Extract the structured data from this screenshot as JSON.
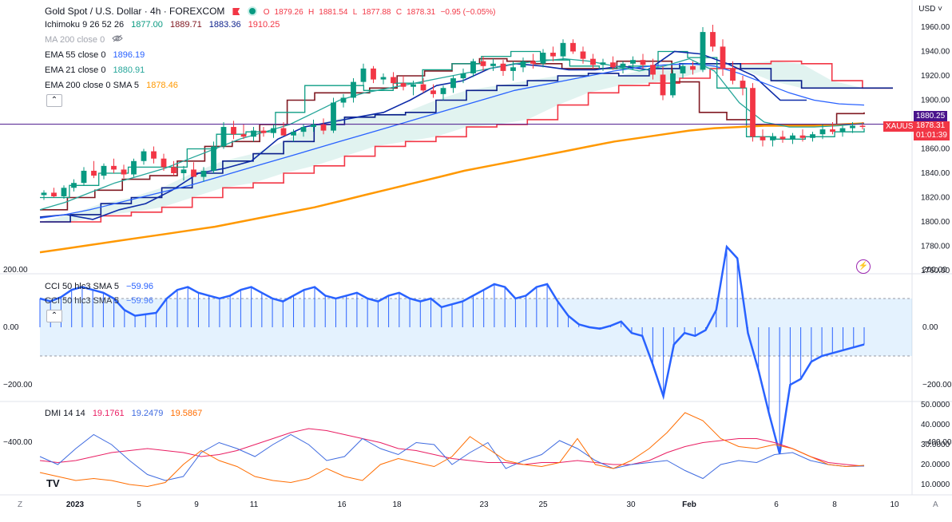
{
  "header": {
    "title": "Gold Spot / U.S. Dollar · 4h · FOREXCOM",
    "ohlc": {
      "O": "1879.26",
      "H": "1881.54",
      "L": "1877.88",
      "C": "1878.31",
      "change": "−0.95 (−0.05%)"
    }
  },
  "legend": {
    "ichimoku": {
      "label": "Ichimoku 9 26 52 26",
      "v1": "1877.00",
      "v2": "1889.71",
      "v3": "1883.36",
      "v4": "1910.25"
    },
    "ma200": {
      "label": "MA 200 close 0"
    },
    "ema55": {
      "label": "EMA 55 close 0",
      "value": "1896.19"
    },
    "ema21": {
      "label": "EMA 21 close 0",
      "value": "1880.91"
    },
    "ema200": {
      "label": "EMA 200 close 0 SMA 5",
      "value": "1878.46"
    },
    "cci": {
      "label": "CCI 50 hlc3 SMA 5",
      "value": "−59.96"
    },
    "cci_ghost": {
      "label": "CCI 50 hlc3 SMA 5",
      "value": "−59.96"
    },
    "dmi": {
      "label": "DMI 14 14",
      "v1": "19.1761",
      "v2": "19.2479",
      "v3": "19.5867"
    }
  },
  "price_axis": {
    "currency": "USD",
    "ticks": [
      "1960.00",
      "1940.00",
      "1920.00",
      "1900.00",
      "1880.00",
      "1860.00",
      "1840.00",
      "1820.00",
      "1800.00",
      "1780.00",
      "1760.00"
    ],
    "tag_line": "1880.25",
    "tag_symbol": "XAUUSD",
    "tag_price": "1878.31",
    "tag_countdown": "01:01:39"
  },
  "cci_axis": {
    "ticks": [
      "200.00",
      "0.00",
      "−200.00",
      "−400.00"
    ]
  },
  "dmi_axis": {
    "ticks": [
      "50.0000",
      "40.0000",
      "30.0000",
      "20.0000",
      "10.0000"
    ]
  },
  "time_axis": {
    "labels": [
      "2023",
      "5",
      "9",
      "11",
      "16",
      "18",
      "23",
      "25",
      "30",
      "Feb",
      "6",
      "8",
      "10"
    ]
  },
  "footer": {
    "logo": "TV",
    "zoom_left": "Z",
    "zoom_right": "A"
  },
  "colors": {
    "up": "#089981",
    "down": "#f23645",
    "ema200": "#ff9800",
    "ema55": "#2962ff",
    "ema21": "#26a69a",
    "ichi_conv": "#2196f3",
    "kijun": "#801922",
    "spanA": "#0d9d84",
    "spanB": "#f23645",
    "lagging": "#0a1e8a",
    "cci": "#2962ff",
    "di_plus": "#3f6be0",
    "di_minus": "#ff6d00",
    "adx": "#e91e63",
    "cloud": "rgba(8,153,129,0.12)"
  },
  "chart_data": [
    {
      "type": "candlestick",
      "title": "Gold Spot / U.S. Dollar · 4h · FOREXCOM",
      "ylim": [
        1760,
        1975
      ],
      "x_day_labels": [
        "2023",
        "5",
        "9",
        "11",
        "16",
        "18",
        "23",
        "25",
        "30",
        "Feb",
        "6",
        "8",
        "10"
      ],
      "candles_ohlc": [
        [
          1822,
          1826,
          1818,
          1824
        ],
        [
          1824,
          1828,
          1820,
          1821
        ],
        [
          1821,
          1830,
          1819,
          1828
        ],
        [
          1828,
          1835,
          1825,
          1832
        ],
        [
          1832,
          1845,
          1830,
          1842
        ],
        [
          1842,
          1850,
          1836,
          1838
        ],
        [
          1838,
          1848,
          1835,
          1846
        ],
        [
          1846,
          1852,
          1840,
          1843
        ],
        [
          1843,
          1847,
          1836,
          1839
        ],
        [
          1839,
          1852,
          1837,
          1850
        ],
        [
          1850,
          1860,
          1847,
          1858
        ],
        [
          1858,
          1862,
          1848,
          1852
        ],
        [
          1852,
          1856,
          1842,
          1845
        ],
        [
          1845,
          1850,
          1838,
          1840
        ],
        [
          1840,
          1846,
          1834,
          1843
        ],
        [
          1843,
          1849,
          1839,
          1837
        ],
        [
          1837,
          1845,
          1833,
          1842
        ],
        [
          1842,
          1866,
          1840,
          1862
        ],
        [
          1862,
          1882,
          1860,
          1878
        ],
        [
          1878,
          1883,
          1868,
          1872
        ],
        [
          1872,
          1880,
          1868,
          1870
        ],
        [
          1870,
          1878,
          1866,
          1875
        ],
        [
          1875,
          1878,
          1870,
          1873
        ],
        [
          1873,
          1880,
          1869,
          1877
        ],
        [
          1877,
          1882,
          1872,
          1871
        ],
        [
          1871,
          1876,
          1866,
          1874
        ],
        [
          1874,
          1880,
          1870,
          1878
        ],
        [
          1878,
          1884,
          1874,
          1880
        ],
        [
          1880,
          1885,
          1872,
          1875
        ],
        [
          1875,
          1902,
          1873,
          1898
        ],
        [
          1898,
          1905,
          1894,
          1902
        ],
        [
          1902,
          1918,
          1898,
          1915
        ],
        [
          1915,
          1930,
          1912,
          1926
        ],
        [
          1926,
          1928,
          1914,
          1917
        ],
        [
          1917,
          1922,
          1913,
          1919
        ],
        [
          1919,
          1923,
          1912,
          1914
        ],
        [
          1914,
          1920,
          1908,
          1911
        ],
        [
          1911,
          1916,
          1904,
          1913
        ],
        [
          1913,
          1918,
          1906,
          1908
        ],
        [
          1908,
          1913,
          1902,
          1905
        ],
        [
          1905,
          1912,
          1900,
          1910
        ],
        [
          1910,
          1920,
          1906,
          1918
        ],
        [
          1918,
          1926,
          1914,
          1922
        ],
        [
          1922,
          1934,
          1919,
          1932
        ],
        [
          1932,
          1936,
          1924,
          1928
        ],
        [
          1928,
          1934,
          1924,
          1930
        ],
        [
          1930,
          1933,
          1920,
          1924
        ],
        [
          1924,
          1932,
          1916,
          1927
        ],
        [
          1927,
          1935,
          1923,
          1932
        ],
        [
          1932,
          1938,
          1926,
          1930
        ],
        [
          1930,
          1942,
          1927,
          1939
        ],
        [
          1939,
          1944,
          1932,
          1936
        ],
        [
          1936,
          1950,
          1933,
          1947
        ],
        [
          1947,
          1950,
          1938,
          1940
        ],
        [
          1940,
          1944,
          1930,
          1934
        ],
        [
          1934,
          1938,
          1926,
          1929
        ],
        [
          1929,
          1934,
          1924,
          1931
        ],
        [
          1931,
          1936,
          1925,
          1927
        ],
        [
          1927,
          1932,
          1922,
          1930
        ],
        [
          1930,
          1936,
          1925,
          1933
        ],
        [
          1933,
          1938,
          1926,
          1929
        ],
        [
          1929,
          1934,
          1917,
          1921
        ],
        [
          1921,
          1928,
          1900,
          1904
        ],
        [
          1904,
          1925,
          1902,
          1922
        ],
        [
          1922,
          1930,
          1918,
          1928
        ],
        [
          1928,
          1932,
          1921,
          1925
        ],
        [
          1925,
          1960,
          1923,
          1956
        ],
        [
          1956,
          1962,
          1940,
          1944
        ],
        [
          1944,
          1950,
          1920,
          1926
        ],
        [
          1926,
          1932,
          1913,
          1916
        ],
        [
          1916,
          1920,
          1904,
          1910
        ],
        [
          1910,
          1914,
          1866,
          1870
        ],
        [
          1870,
          1876,
          1862,
          1867
        ],
        [
          1867,
          1873,
          1862,
          1870
        ],
        [
          1870,
          1875,
          1865,
          1868
        ],
        [
          1868,
          1873,
          1864,
          1871
        ],
        [
          1871,
          1876,
          1866,
          1869
        ],
        [
          1869,
          1874,
          1866,
          1872
        ],
        [
          1872,
          1880,
          1868,
          1876
        ],
        [
          1876,
          1882,
          1872,
          1874
        ],
        [
          1874,
          1879,
          1870,
          1877
        ],
        [
          1877,
          1882,
          1873,
          1879
        ],
        [
          1879,
          1882,
          1876,
          1878
        ]
      ],
      "series": [
        {
          "name": "EMA 200 close 0 SMA 5",
          "values": [
            1775,
            1778,
            1781,
            1784,
            1787,
            1790,
            1793,
            1796,
            1800,
            1804,
            1808,
            1812,
            1817,
            1822,
            1827,
            1832,
            1837,
            1842,
            1846,
            1850,
            1854,
            1858,
            1862,
            1866,
            1869,
            1872,
            1875,
            1877,
            1878,
            1879,
            1879,
            1879,
            1880,
            1881
          ]
        },
        {
          "name": "EMA 55 close 0",
          "values": [
            1803,
            1806,
            1810,
            1815,
            1820,
            1825,
            1830,
            1836,
            1842,
            1848,
            1854,
            1860,
            1866,
            1872,
            1878,
            1884,
            1890,
            1896,
            1902,
            1908,
            1912,
            1916,
            1920,
            1924,
            1927,
            1929,
            1930,
            1928,
            1922,
            1914,
            1906,
            1900,
            1897,
            1896
          ]
        },
        {
          "name": "EMA 21 close 0",
          "values": [
            1810,
            1816,
            1824,
            1832,
            1838,
            1844,
            1852,
            1860,
            1868,
            1874,
            1880,
            1890,
            1900,
            1906,
            1910,
            1914,
            1918,
            1922,
            1926,
            1930,
            1932,
            1934,
            1932,
            1928,
            1924,
            1928,
            1934,
            1924,
            1898,
            1882,
            1878,
            1878,
            1879,
            1881
          ]
        }
      ],
      "ichimoku": {
        "conversion": [
          1820,
          1830,
          1840,
          1845,
          1845,
          1860,
          1872,
          1874,
          1890,
          1912,
          1912,
          1908,
          1914,
          1925,
          1930,
          1936,
          1940,
          1933,
          1928,
          1926,
          1928,
          1940,
          1935,
          1910,
          1870,
          1868,
          1870,
          1874,
          1877
        ],
        "base": [
          1810,
          1820,
          1826,
          1835,
          1838,
          1850,
          1862,
          1866,
          1880,
          1900,
          1906,
          1906,
          1910,
          1920,
          1924,
          1930,
          1934,
          1932,
          1930,
          1926,
          1926,
          1932,
          1932,
          1915,
          1890,
          1884,
          1880,
          1880,
          1880,
          1889,
          1890
        ],
        "span_a": [
          1800,
          1806,
          1815,
          1820,
          1828,
          1840,
          1850,
          1856,
          1866,
          1880,
          1886,
          1888,
          1890,
          1900,
          1908,
          1912,
          1916,
          1920,
          1922,
          1920,
          1926,
          1930,
          1930,
          1926,
          1916,
          1910,
          1910,
          1910,
          1910
        ],
        "span_b": [
          1800,
          1800,
          1805,
          1808,
          1812,
          1820,
          1828,
          1832,
          1840,
          1846,
          1854,
          1862,
          1866,
          1870,
          1878,
          1880,
          1884,
          1896,
          1906,
          1912,
          1914,
          1918,
          1926,
          1930,
          1932,
          1930,
          1916,
          1910,
          1910
        ],
        "lagging": [
          1804,
          1806,
          1802,
          1810,
          1815,
          1826,
          1840,
          1844,
          1850,
          1868,
          1878,
          1882,
          1886,
          1890,
          1900,
          1912,
          1916,
          1926,
          1930,
          1928,
          1925,
          1925,
          1928,
          1925,
          1940,
          1938,
          1930,
          1920,
          1900,
          1900
        ]
      }
    },
    {
      "type": "line",
      "title": "CCI 50 hlc3 SMA 5",
      "ylim": [
        -480,
        300
      ],
      "band": [
        -100,
        100
      ],
      "values": [
        100,
        90,
        105,
        130,
        140,
        130,
        120,
        100,
        60,
        40,
        45,
        50,
        100,
        130,
        140,
        120,
        110,
        100,
        110,
        130,
        140,
        120,
        100,
        90,
        110,
        130,
        140,
        110,
        100,
        110,
        120,
        100,
        90,
        110,
        120,
        100,
        90,
        100,
        70,
        80,
        90,
        110,
        130,
        150,
        140,
        100,
        110,
        140,
        150,
        90,
        40,
        10,
        0,
        -5,
        5,
        20,
        -20,
        -30,
        -130,
        -240,
        -60,
        -20,
        -30,
        -10,
        60,
        280,
        240,
        -20,
        -150,
        -300,
        -440,
        -200,
        -180,
        -120,
        -100,
        -90,
        -80,
        -70,
        -60
      ]
    },
    {
      "type": "line",
      "title": "DMI 14 14",
      "ylim": [
        5,
        52
      ],
      "series": [
        {
          "name": "DMI 14 14 (1)",
          "values": [
            22,
            21,
            22,
            24,
            26,
            27,
            28,
            27,
            26,
            24,
            25,
            27,
            30,
            33,
            36,
            38,
            37,
            35,
            33,
            31,
            28,
            27,
            25,
            23,
            22,
            21,
            21,
            20,
            21,
            21,
            22,
            21,
            20,
            20,
            22,
            26,
            29,
            31,
            32,
            33,
            33,
            31,
            28,
            24,
            21,
            20,
            19.18
          ]
        },
        {
          "name": "DMI 14 14 (2)",
          "values": [
            24,
            20,
            28,
            35,
            30,
            22,
            15,
            12,
            14,
            26,
            31,
            28,
            24,
            30,
            35,
            30,
            22,
            24,
            33,
            28,
            25,
            31,
            30,
            20,
            26,
            31,
            18,
            22,
            25,
            32,
            28,
            22,
            18,
            20,
            21,
            22,
            17,
            13,
            20,
            22,
            21,
            25,
            26,
            22,
            20,
            19,
            19.25
          ]
        },
        {
          "name": "DMI 14 14 (3)",
          "values": [
            16,
            14,
            12,
            13,
            12,
            10,
            9,
            11,
            20,
            27,
            22,
            19,
            14,
            12,
            11,
            13,
            18,
            14,
            12,
            20,
            23,
            21,
            19,
            24,
            34,
            28,
            22,
            20,
            19,
            21,
            33,
            20,
            18,
            22,
            28,
            36,
            46,
            42,
            33,
            29,
            28,
            30,
            28,
            24,
            20,
            19,
            19.59
          ]
        }
      ]
    }
  ]
}
